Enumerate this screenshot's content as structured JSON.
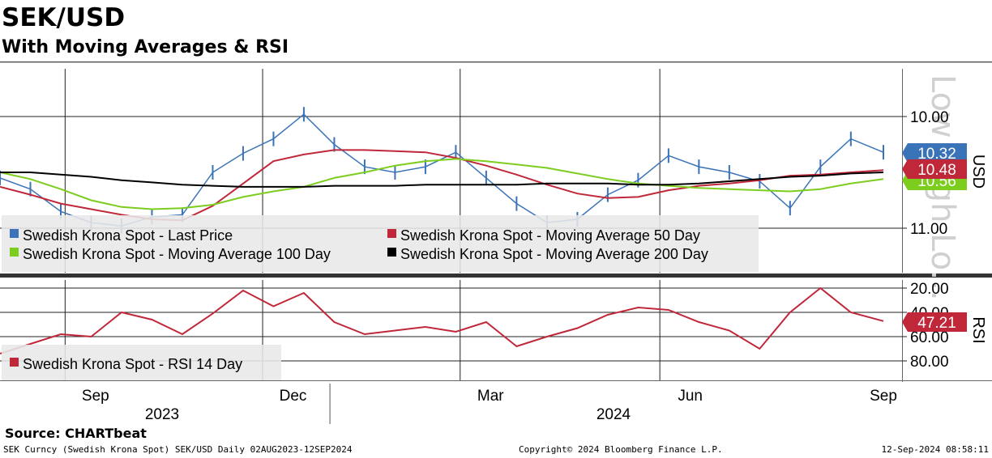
{
  "header": {
    "title": "SEK/USD",
    "subtitle": "With Moving Averages & RSI"
  },
  "footer": {
    "source": "Source: CHARTbeat",
    "left": "SEK Curncy (Swedish Krona Spot) SEK/USD  Daily 02AUG2023-12SEP2024",
    "middle": "Copyright© 2024 Bloomberg Finance L.P.",
    "right": "12-Sep-2024 08:58:11"
  },
  "watermark": "Low High Lo...",
  "colors": {
    "price": "#3b73b8",
    "ma50": "#c0283a",
    "ma100": "#7ccd1e",
    "ma200": "#000000",
    "rsi": "#c0283a"
  },
  "chart_data": [
    {
      "type": "line",
      "title": "SEK/USD",
      "ylabel": "USD",
      "y_inverted": true,
      "y_ticks": [
        "10.00",
        "11.00"
      ],
      "x_ticks": [
        "Sep",
        "Dec",
        "Mar",
        "Jun",
        "Sep"
      ],
      "year_labels": [
        "2023",
        "2024"
      ],
      "legend_position": "bottom-left",
      "last_value_labels": [
        {
          "series": "Swedish Krona Spot - Last Price",
          "value": "10.32"
        },
        {
          "series": "Swedish Krona Spot - Moving Average 50 Day",
          "value": "10.48"
        },
        {
          "series": "Swedish Krona Spot - Moving Average 100 Day",
          "value": "10.56"
        }
      ],
      "x": [
        "2023-08-02",
        "2023-08-16",
        "2023-08-30",
        "2023-09-13",
        "2023-09-27",
        "2023-10-11",
        "2023-10-25",
        "2023-11-08",
        "2023-11-22",
        "2023-12-06",
        "2023-12-20",
        "2024-01-03",
        "2024-01-17",
        "2024-01-31",
        "2024-02-14",
        "2024-02-28",
        "2024-03-13",
        "2024-03-27",
        "2024-04-10",
        "2024-04-24",
        "2024-05-08",
        "2024-05-22",
        "2024-06-05",
        "2024-06-19",
        "2024-07-03",
        "2024-07-17",
        "2024-07-31",
        "2024-08-14",
        "2024-08-28",
        "2024-09-12"
      ],
      "series": [
        {
          "name": "Swedish Krona Spot - Last Price",
          "values": [
            10.55,
            10.65,
            10.85,
            10.95,
            10.98,
            10.9,
            10.88,
            10.5,
            10.33,
            10.2,
            9.98,
            10.25,
            10.45,
            10.5,
            10.45,
            10.32,
            10.55,
            10.78,
            10.95,
            10.92,
            10.7,
            10.57,
            10.35,
            10.45,
            10.5,
            10.58,
            10.82,
            10.45,
            10.2,
            10.32
          ]
        },
        {
          "name": "Swedish Krona Spot - Moving Average 50 Day",
          "values": [
            10.63,
            10.7,
            10.78,
            10.83,
            10.88,
            10.92,
            10.93,
            10.8,
            10.6,
            10.4,
            10.34,
            10.3,
            10.3,
            10.31,
            10.32,
            10.37,
            10.44,
            10.52,
            10.61,
            10.69,
            10.73,
            10.72,
            10.66,
            10.62,
            10.6,
            10.57,
            10.53,
            10.52,
            10.5,
            10.48
          ]
        },
        {
          "name": "Swedish Krona Spot - Moving Average 100 Day",
          "values": [
            10.5,
            10.56,
            10.65,
            10.75,
            10.81,
            10.83,
            10.82,
            10.79,
            10.72,
            10.67,
            10.63,
            10.55,
            10.5,
            10.44,
            10.4,
            10.38,
            10.4,
            10.43,
            10.46,
            10.51,
            10.56,
            10.6,
            10.62,
            10.64,
            10.65,
            10.66,
            10.67,
            10.65,
            10.6,
            10.56
          ]
        },
        {
          "name": "Swedish Krona Spot - Moving Average 200 Day",
          "values": [
            10.5,
            10.5,
            10.52,
            10.54,
            10.57,
            10.59,
            10.61,
            10.62,
            10.63,
            10.63,
            10.63,
            10.62,
            10.62,
            10.62,
            10.61,
            10.61,
            10.61,
            10.61,
            10.6,
            10.6,
            10.6,
            10.61,
            10.61,
            10.6,
            10.58,
            10.56,
            10.54,
            10.53,
            10.51,
            10.5
          ]
        }
      ]
    },
    {
      "type": "line",
      "ylabel": "RSI",
      "y_inverted": true,
      "y_ticks": [
        "20.00",
        "40.00",
        "60.00",
        "80.00"
      ],
      "legend_position": "bottom-left",
      "last_value_labels": [
        {
          "series": "Swedish Krona Spot - RSI 14 Day",
          "value": "47.21"
        }
      ],
      "series": [
        {
          "name": "Swedish Krona Spot - RSI 14 Day",
          "values": [
            74,
            66,
            58,
            60,
            40,
            46,
            58,
            41,
            22,
            35,
            24,
            48,
            58,
            55,
            52,
            56,
            48,
            68,
            60,
            53,
            42,
            36,
            38,
            48,
            55,
            70,
            40,
            20,
            40,
            47.21
          ]
        }
      ]
    }
  ],
  "legend": {
    "price": "Swedish Krona Spot - Last Price",
    "ma50": "Swedish Krona Spot - Moving Average 50 Day",
    "ma100": "Swedish Krona Spot - Moving Average 100 Day",
    "ma200": "Swedish Krona Spot - Moving Average 200 Day",
    "rsi": "Swedish Krona Spot - RSI 14 Day"
  }
}
